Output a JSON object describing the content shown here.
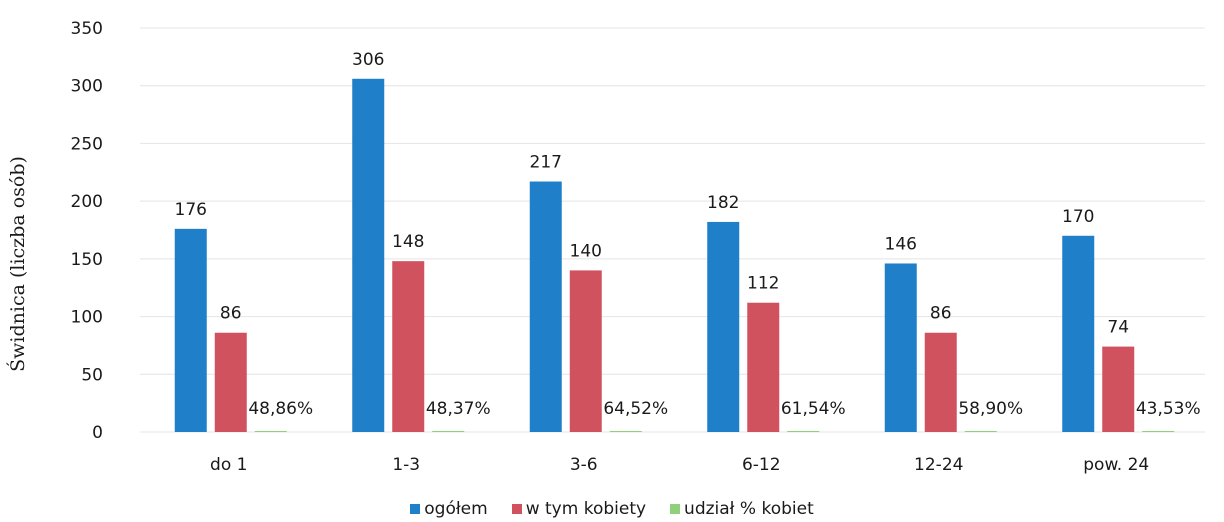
{
  "chart_data": {
    "type": "bar",
    "ylabel": "Świdnica (liczba osób)",
    "ylim": [
      0,
      350
    ],
    "yticks": [
      "0",
      "50",
      "100",
      "150",
      "200",
      "250",
      "300",
      "350"
    ],
    "categories": [
      "do 1",
      "1-3",
      "3-6",
      "6-12",
      "12-24",
      "pow. 24"
    ],
    "series": [
      {
        "name": "ogółem",
        "color": "#1f7fc9",
        "values": [
          176,
          306,
          217,
          182,
          146,
          170
        ],
        "labels": [
          "176",
          "306",
          "217",
          "182",
          "146",
          "170"
        ]
      },
      {
        "name": "w tym kobiety",
        "color": "#d1525f",
        "values": [
          86,
          148,
          140,
          112,
          86,
          74
        ],
        "labels": [
          "86",
          "148",
          "140",
          "112",
          "86",
          "74"
        ]
      },
      {
        "name": "udział % kobiet",
        "color": "#8fd17a",
        "values": [
          48.86,
          48.37,
          64.52,
          61.54,
          58.9,
          43.53
        ],
        "labels": [
          "48,86%",
          "48,37%",
          "64,52%",
          "61,54%",
          "58,90%",
          "43,53%"
        ]
      }
    ],
    "grid": true,
    "legend_position": "bottom"
  }
}
